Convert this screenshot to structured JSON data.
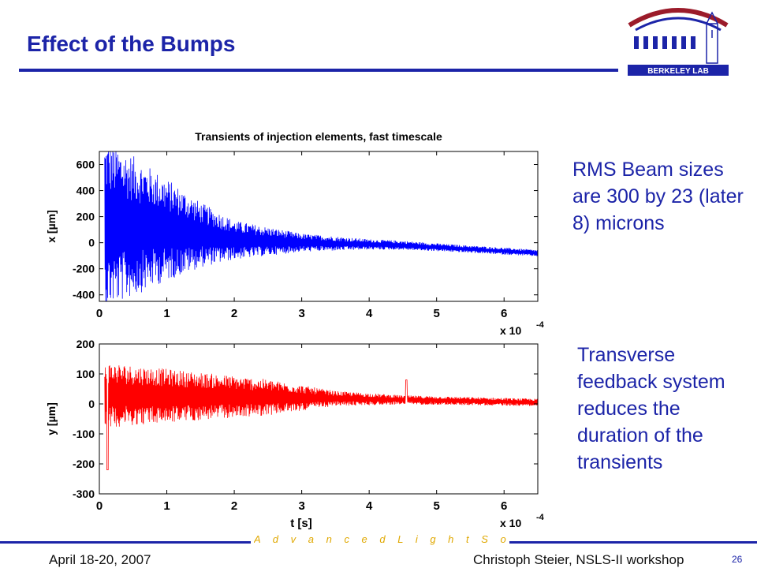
{
  "slide": {
    "title": "Effect of the Bumps",
    "side_text_1": "RMS Beam sizes are 300 by 23 (later 8) microns",
    "side_text_2": "Transverse feedback system reduces the duration of the transients"
  },
  "logo": {
    "text": "BERKELEY LAB"
  },
  "footer": {
    "tagline": "A d v a n c e d   L i g h t   S o u r c e",
    "date": "April 18-20, 2007",
    "author": "Christoph Steier, NSLS-II workshop",
    "page": "26"
  },
  "colors": {
    "accent": "#1c24a8",
    "series_x": "#0000ff",
    "series_y": "#ff0000",
    "gold": "#e0a800"
  },
  "chart_data": [
    {
      "type": "line",
      "title": "Transients of injection elements, fast timescale",
      "ylabel": "x [µm]",
      "xlabel": "",
      "x_multiplier": "x 10",
      "x_multiplier_exp": "-4",
      "xlim": [
        0,
        6.5
      ],
      "ylim": [
        -450,
        700
      ],
      "x_ticks": [
        0,
        1,
        2,
        3,
        4,
        5,
        6
      ],
      "y_ticks": [
        600,
        400,
        200,
        0,
        -200,
        -400
      ],
      "grid": false,
      "series": [
        {
          "color": "#0000ff",
          "profile": "decaying oscillation",
          "envelope": [
            [
              0.1,
              650
            ],
            [
              0.3,
              600
            ],
            [
              0.8,
              450
            ],
            [
              1.5,
              250
            ],
            [
              2.0,
              150
            ],
            [
              3.0,
              70
            ],
            [
              4.0,
              40
            ],
            [
              5.0,
              30
            ],
            [
              6.5,
              25
            ]
          ],
          "offset": [
            [
              0.1,
              150
            ],
            [
              1.0,
              100
            ],
            [
              2.0,
              20
            ],
            [
              3.0,
              0
            ],
            [
              4.5,
              -20
            ],
            [
              6.5,
              -80
            ]
          ],
          "spikes": []
        }
      ]
    },
    {
      "type": "line",
      "title": "",
      "ylabel": "y [µm]",
      "xlabel": "t [s]",
      "x_multiplier": "x 10",
      "x_multiplier_exp": "-4",
      "xlim": [
        0,
        6.5
      ],
      "ylim": [
        -300,
        200
      ],
      "x_ticks": [
        0,
        1,
        2,
        3,
        4,
        5,
        6
      ],
      "y_ticks": [
        200,
        100,
        0,
        -100,
        -200,
        -300
      ],
      "grid": false,
      "series": [
        {
          "color": "#ff0000",
          "profile": "decaying oscillation",
          "envelope": [
            [
              0.1,
              110
            ],
            [
              0.5,
              100
            ],
            [
              1.5,
              80
            ],
            [
              2.5,
              60
            ],
            [
              3.5,
              25
            ],
            [
              4.5,
              15
            ],
            [
              6.5,
              12
            ]
          ],
          "offset": [
            [
              0.1,
              30
            ],
            [
              3.0,
              20
            ],
            [
              6.5,
              5
            ]
          ],
          "spikes": [
            [
              0.12,
              -220
            ],
            [
              4.55,
              80
            ]
          ]
        }
      ]
    }
  ]
}
